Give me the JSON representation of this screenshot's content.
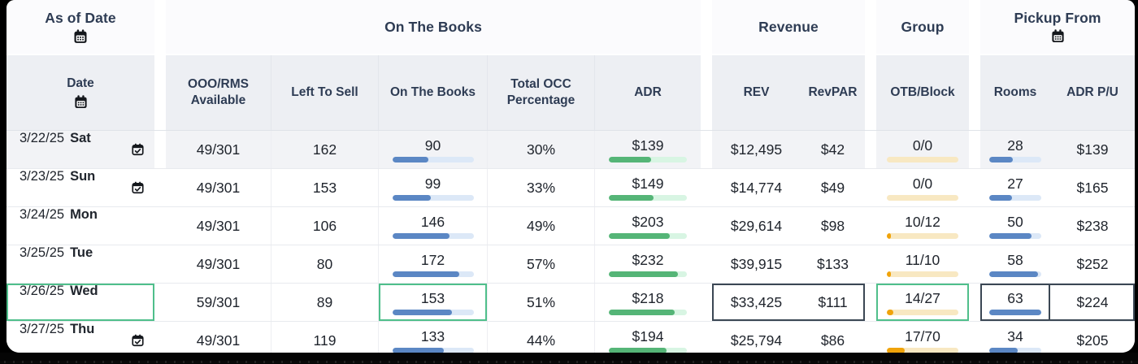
{
  "header": {
    "as_of_date": "As of Date",
    "on_the_books": "On The Books",
    "revenue": "Revenue",
    "group": "Group",
    "pickup_from": "Pickup From"
  },
  "subheader": {
    "date": "Date",
    "ooo_rms_available": "OOO/RMS Available",
    "left_to_sell": "Left To Sell",
    "on_the_books": "On The Books",
    "total_occ_percentage": "Total OCC Percentage",
    "adr": "ADR",
    "rev": "REV",
    "revpar": "RevPAR",
    "otb_block": "OTB/Block",
    "rooms": "Rooms",
    "adr_pu": "ADR P/U"
  },
  "icons": {
    "calendar": "calendar-icon",
    "calendar_check": "calendar-check-icon"
  },
  "colors": {
    "otb_bar_fill": "#5b87c4",
    "otb_bar_track": "#dce8f7",
    "adr_bar_fill": "#55b577",
    "adr_bar_track": "#d8f5e3",
    "group_bar_fill": "#f0a30a",
    "group_bar_track": "#f8e8c2",
    "selected_green_border": "#4fbf8b",
    "selected_dark_border": "#3b4754",
    "shaded_row_bg": "#f2f3f6",
    "subheader_bg": "#edeff3"
  },
  "rows": [
    {
      "date": "3/22/25",
      "day": "Sat",
      "cal": true,
      "ooo": "49/301",
      "lts": "162",
      "otb": "90",
      "otb_fill": 44,
      "occ": "30%",
      "adr": "$139",
      "adr_fill": 54,
      "rev": "$12,495",
      "revpar": "$42",
      "otb_block": "0/0",
      "grp_fill": 0,
      "rooms": "28",
      "rooms_fill": 45,
      "adr_pu": "$139",
      "shaded": true,
      "selected": false
    },
    {
      "date": "3/23/25",
      "day": "Sun",
      "cal": true,
      "ooo": "49/301",
      "lts": "153",
      "otb": "99",
      "otb_fill": 47,
      "occ": "33%",
      "adr": "$149",
      "adr_fill": 57,
      "rev": "$14,774",
      "revpar": "$49",
      "otb_block": "0/0",
      "grp_fill": 0,
      "rooms": "27",
      "rooms_fill": 43,
      "adr_pu": "$165",
      "shaded": false,
      "selected": false
    },
    {
      "date": "3/24/25",
      "day": "Mon",
      "cal": false,
      "ooo": "49/301",
      "lts": "106",
      "otb": "146",
      "otb_fill": 70,
      "occ": "49%",
      "adr": "$203",
      "adr_fill": 78,
      "rev": "$29,614",
      "revpar": "$98",
      "otb_block": "10/12",
      "grp_fill": 6,
      "rooms": "50",
      "rooms_fill": 81,
      "adr_pu": "$238",
      "shaded": false,
      "selected": false
    },
    {
      "date": "3/25/25",
      "day": "Tue",
      "cal": false,
      "ooo": "49/301",
      "lts": "80",
      "otb": "172",
      "otb_fill": 82,
      "occ": "57%",
      "adr": "$232",
      "adr_fill": 89,
      "rev": "$39,915",
      "revpar": "$133",
      "otb_block": "11/10",
      "grp_fill": 6,
      "rooms": "58",
      "rooms_fill": 93,
      "adr_pu": "$252",
      "shaded": false,
      "selected": false
    },
    {
      "date": "3/26/25",
      "day": "Wed",
      "cal": false,
      "ooo": "59/301",
      "lts": "89",
      "otb": "153",
      "otb_fill": 73,
      "occ": "51%",
      "adr": "$218",
      "adr_fill": 84,
      "rev": "$33,425",
      "revpar": "$111",
      "otb_block": "14/27",
      "grp_fill": 9,
      "rooms": "63",
      "rooms_fill": 100,
      "adr_pu": "$224",
      "shaded": false,
      "selected": true
    },
    {
      "date": "3/27/25",
      "day": "Thu",
      "cal": true,
      "ooo": "49/301",
      "lts": "119",
      "otb": "133",
      "otb_fill": 63,
      "occ": "44%",
      "adr": "$194",
      "adr_fill": 74,
      "rev": "$25,794",
      "revpar": "$86",
      "otb_block": "17/70",
      "grp_fill": 25,
      "rooms": "34",
      "rooms_fill": 54,
      "adr_pu": "$205",
      "shaded": false,
      "selected": false
    }
  ]
}
